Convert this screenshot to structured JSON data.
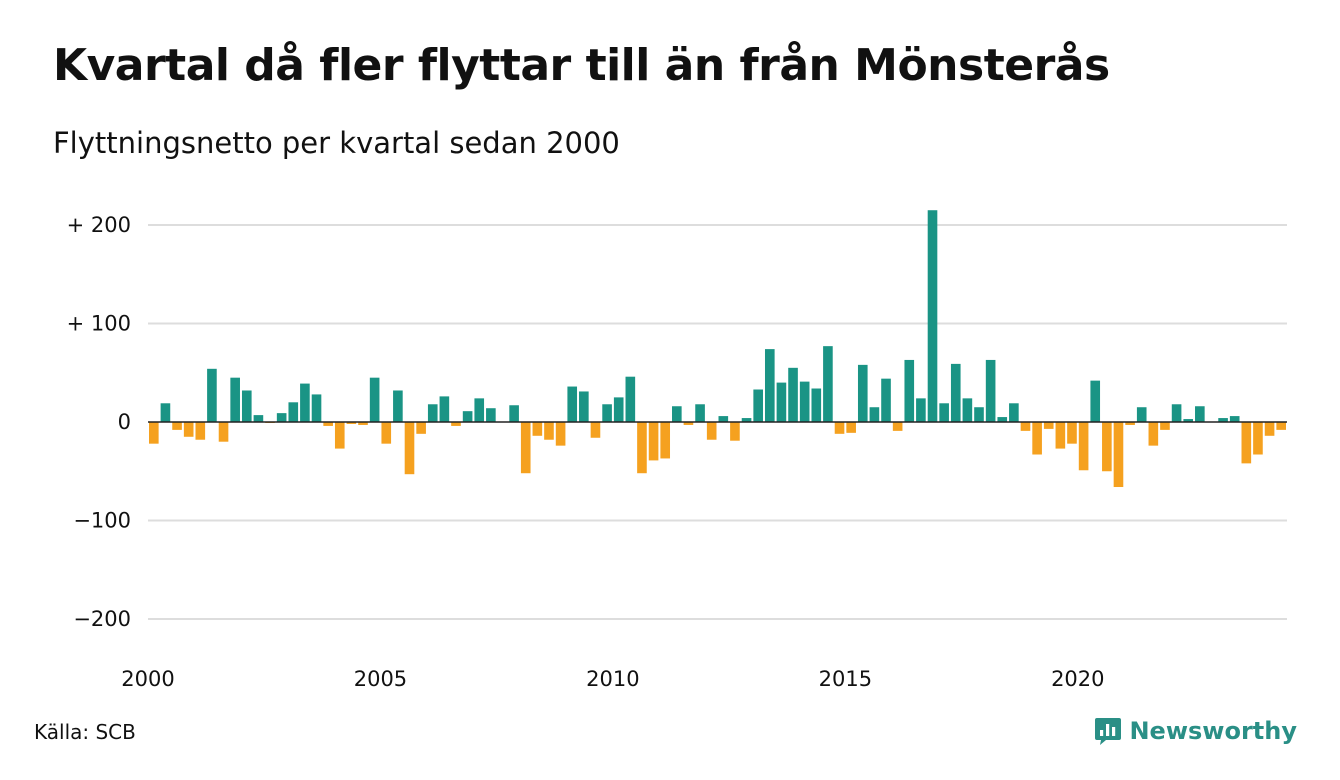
{
  "title": "Kvartal då fler flyttar till än från Mönsterås",
  "subtitle": "Flyttningsnetto per kvartal sedan 2000",
  "source": "Källa: SCB",
  "brand": "Newsworthy",
  "colors": {
    "positive": "#1a9485",
    "negative": "#f5a11f",
    "grid": "#dddddd",
    "brand": "#2a8f86"
  },
  "chart_data": {
    "type": "bar",
    "ylim": [
      -230,
      215
    ],
    "xlim": [
      2000,
      2024.75
    ],
    "y_ticks": [
      {
        "value": 200,
        "label": "+ 200"
      },
      {
        "value": 100,
        "label": "+ 100"
      },
      {
        "value": 0,
        "label": "0"
      },
      {
        "value": -100,
        "label": "−100"
      },
      {
        "value": -200,
        "label": "−200"
      }
    ],
    "x_ticks": [
      {
        "value": 2000,
        "label": "2000"
      },
      {
        "value": 2005,
        "label": "2005"
      },
      {
        "value": 2010,
        "label": "2010"
      },
      {
        "value": 2015,
        "label": "2015"
      },
      {
        "value": 2020,
        "label": "2020"
      }
    ],
    "start_year": 2000,
    "values": [
      -22,
      19,
      -8,
      -15,
      -18,
      54,
      -20,
      45,
      32,
      7,
      -1,
      9,
      20,
      39,
      28,
      -4,
      -27,
      -2,
      -3,
      45,
      -22,
      32,
      -53,
      -12,
      18,
      26,
      -4,
      11,
      24,
      14,
      0,
      17,
      -52,
      -14,
      -18,
      -24,
      36,
      31,
      -16,
      18,
      25,
      46,
      -52,
      -39,
      -37,
      16,
      -3,
      18,
      -18,
      6,
      -19,
      4,
      33,
      74,
      40,
      55,
      41,
      34,
      77,
      -12,
      -11,
      58,
      15,
      44,
      -9,
      63,
      24,
      215,
      19,
      59,
      24,
      15,
      63,
      5,
      19,
      -9,
      -33,
      -7,
      -27,
      -22,
      -49,
      42,
      -50,
      -66,
      -3,
      15,
      -24,
      -8,
      18,
      3,
      16,
      0,
      4,
      6,
      -42,
      -33,
      -14,
      -8
    ]
  }
}
